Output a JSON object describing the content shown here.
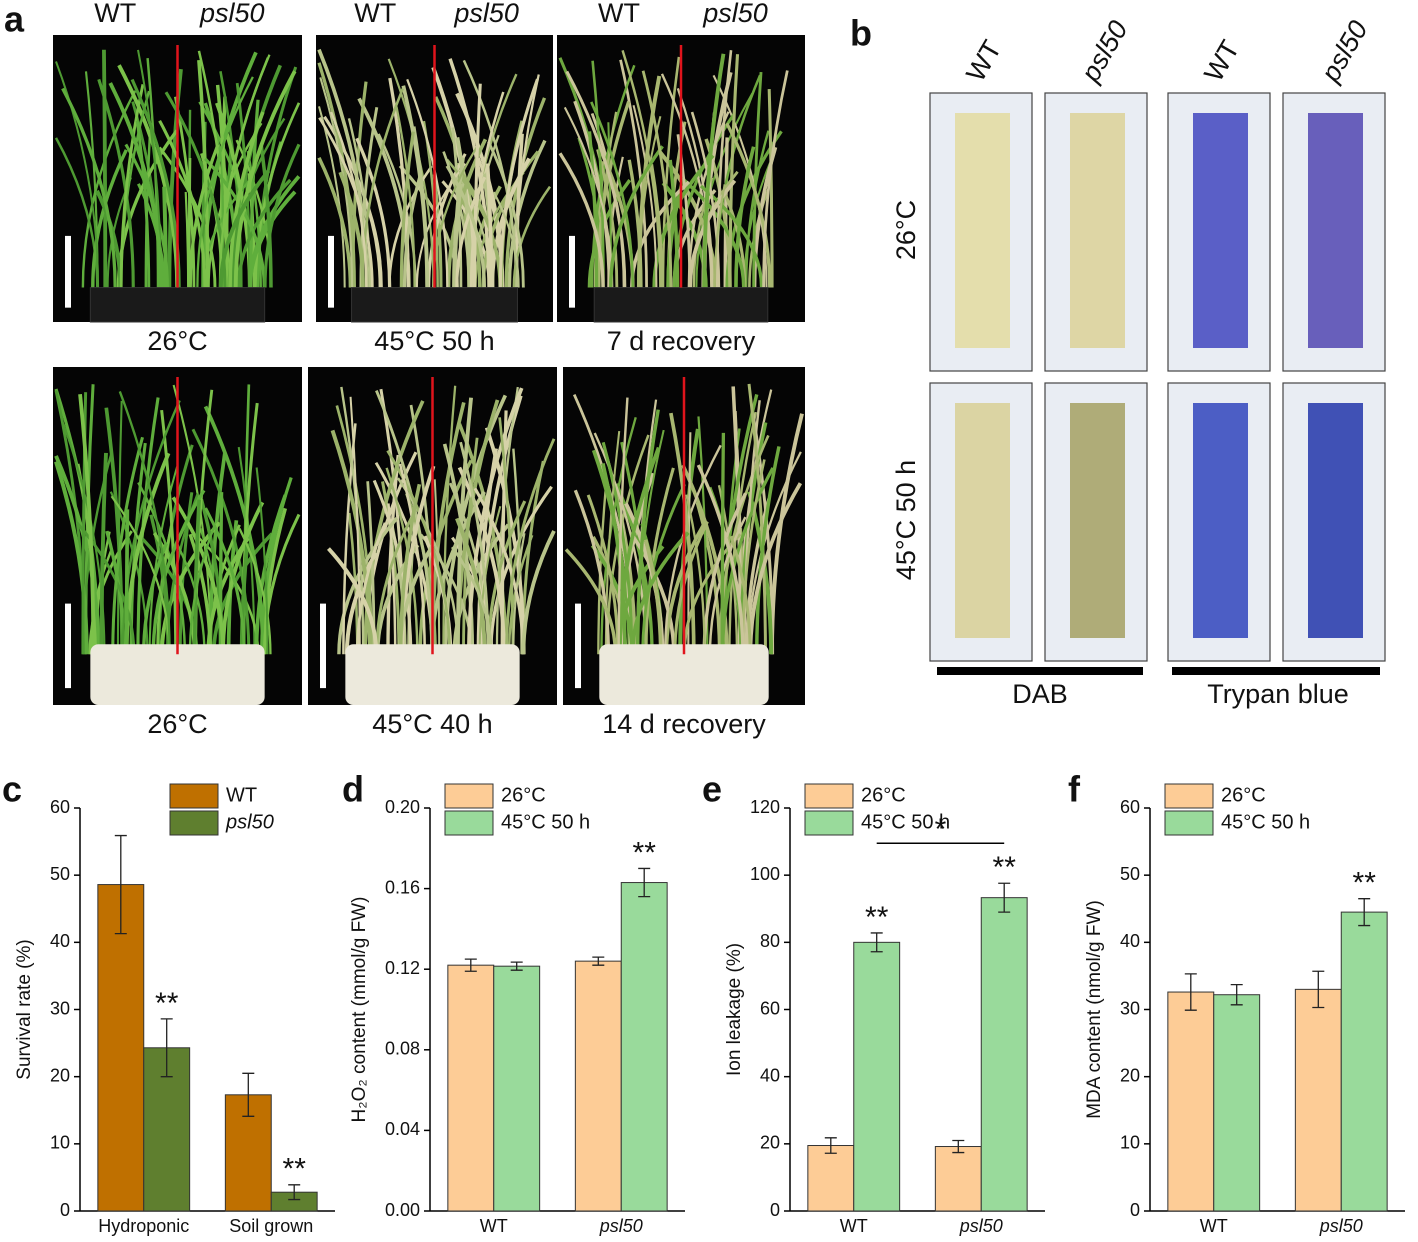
{
  "panel_labels": [
    "a",
    "b",
    "c",
    "d",
    "e",
    "f"
  ],
  "panel_a": {
    "genotypes": [
      "WT",
      "psl50"
    ],
    "rows": [
      [
        "26°C",
        "45°C 50 h",
        "7 d recovery"
      ],
      [
        "26°C",
        "45°C 40 h",
        "14 d recovery"
      ]
    ]
  },
  "panel_b": {
    "columns": [
      "WT",
      "psl50",
      "WT",
      "psl50"
    ],
    "rows": [
      "26°C",
      "45°C 50 h"
    ],
    "stains": [
      "DAB",
      "Trypan blue"
    ]
  },
  "chart_data": [
    {
      "type": "bar",
      "ylabel": "Survival rate (%)",
      "categories": [
        "Hydroponic",
        "Soil grown"
      ],
      "category_italic": [
        false,
        false
      ],
      "series": [
        {
          "name": "WT",
          "italic": false,
          "color": "#bf7000",
          "values": [
            48.6,
            17.3
          ],
          "errors": [
            7.3,
            3.2
          ]
        },
        {
          "name": "psl50",
          "italic": true,
          "color": "#5f7f2f",
          "values": [
            24.3,
            2.8
          ],
          "errors": [
            4.3,
            1.1
          ]
        }
      ],
      "ylim": [
        0,
        60
      ],
      "yticks": [
        0,
        10,
        20,
        30,
        40,
        50,
        60
      ],
      "legend": "upper-right",
      "annotations": [
        {
          "text": "**",
          "series": 1,
          "index": 0
        },
        {
          "text": "**",
          "series": 1,
          "index": 1
        }
      ]
    },
    {
      "type": "bar",
      "ylabel": "H₂O₂ content (mmol/g FW)",
      "categories": [
        "WT",
        "psl50"
      ],
      "category_italic": [
        false,
        true
      ],
      "series": [
        {
          "name": "26°C",
          "italic": false,
          "color": "#fdcc96",
          "values": [
            0.122,
            0.124
          ],
          "errors": [
            0.003,
            0.002
          ]
        },
        {
          "name": "45°C 50 h",
          "italic": false,
          "color": "#99da9b",
          "values": [
            0.1215,
            0.163
          ],
          "errors": [
            0.002,
            0.007
          ]
        }
      ],
      "ylim": [
        0,
        0.2
      ],
      "yticks": [
        {
          "value": 0,
          "label": "0.00"
        },
        {
          "value": 0.04,
          "label": "0.04"
        },
        {
          "value": 0.08,
          "label": "0.08"
        },
        {
          "value": 0.12,
          "label": "0.12"
        },
        {
          "value": 0.16,
          "label": "0.16"
        },
        {
          "value": 0.2,
          "label": "0.20"
        }
      ],
      "legend": "upper-left",
      "annotations": [
        {
          "text": "**",
          "series": 1,
          "index": 1
        }
      ]
    },
    {
      "type": "bar",
      "ylabel": "Ion leakage (%)",
      "categories": [
        "WT",
        "psl50"
      ],
      "category_italic": [
        false,
        true
      ],
      "series": [
        {
          "name": "26°C",
          "italic": false,
          "color": "#fdcc96",
          "values": [
            19.5,
            19.2
          ],
          "errors": [
            2.3,
            1.8
          ]
        },
        {
          "name": "45°C 50 h",
          "italic": false,
          "color": "#99da9b",
          "values": [
            80,
            93.3
          ],
          "errors": [
            2.8,
            4.3
          ]
        }
      ],
      "ylim": [
        0,
        120
      ],
      "yticks": [
        0,
        20,
        40,
        60,
        80,
        100,
        120
      ],
      "legend": "upper-left",
      "annotations": [
        {
          "text": "**",
          "series": 1,
          "index": 0
        },
        {
          "text": "**",
          "series": 1,
          "index": 1
        }
      ],
      "brackets": [
        {
          "text": "*",
          "series": 1,
          "from": 0,
          "to": 1
        }
      ]
    },
    {
      "type": "bar",
      "ylabel": "MDA content (nmol/g FW)",
      "categories": [
        "WT",
        "psl50"
      ],
      "category_italic": [
        false,
        true
      ],
      "series": [
        {
          "name": "26°C",
          "italic": false,
          "color": "#fdcc96",
          "values": [
            32.6,
            33
          ],
          "errors": [
            2.7,
            2.7
          ]
        },
        {
          "name": "45°C 50 h",
          "italic": false,
          "color": "#99da9b",
          "values": [
            32.2,
            44.5
          ],
          "errors": [
            1.5,
            2
          ]
        }
      ],
      "ylim": [
        0,
        60
      ],
      "yticks": [
        0,
        10,
        20,
        30,
        40,
        50,
        60
      ],
      "legend": "upper-left",
      "annotations": [
        {
          "text": "**",
          "series": 1,
          "index": 1
        }
      ]
    }
  ]
}
